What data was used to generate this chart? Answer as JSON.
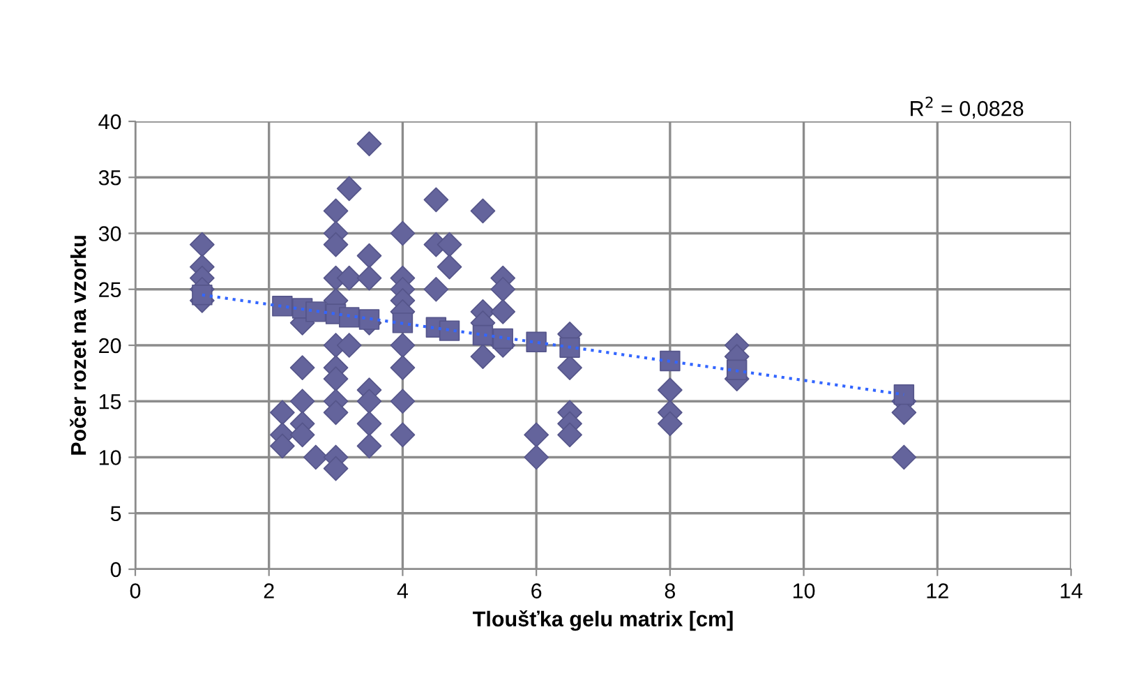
{
  "chart_data": {
    "type": "scatter",
    "xlabel": "Tloušťka gelu matrix [cm]",
    "ylabel": "Počer rozet na vzorku",
    "xlim": [
      0,
      14
    ],
    "xticks": [
      0,
      2,
      4,
      6,
      8,
      10,
      12,
      14
    ],
    "ylim": [
      0,
      40
    ],
    "yticks": [
      0,
      5,
      10,
      15,
      20,
      25,
      30,
      35,
      40
    ],
    "grid": true,
    "annotations": [
      "R$^{2}$ = 0,0828"
    ],
    "series": [
      {
        "color": "#64649c",
        "marker": "diamond",
        "x": [
          1,
          1,
          1,
          1,
          1,
          2.2,
          2.2,
          2.2,
          2.5,
          2.5,
          2.5,
          2.5,
          2.5,
          2.7,
          3,
          3,
          3,
          3,
          3,
          3,
          3,
          3,
          3,
          3,
          3,
          3,
          3.2,
          3.2,
          3.2,
          3.5,
          3.5,
          3.5,
          3.5,
          3.5,
          3.5,
          3.5,
          3.5,
          4,
          4,
          4,
          4,
          4,
          4,
          4,
          4,
          4,
          4.5,
          4.5,
          4.5,
          4.7,
          4.7,
          5.2,
          5.2,
          5.2,
          5.2,
          5.5,
          5.5,
          5.5,
          5.5,
          6,
          6,
          6.5,
          6.5,
          6.5,
          6.5,
          6.5,
          8,
          8,
          8,
          9,
          9,
          9,
          11.5,
          11.5,
          11.5
        ],
        "values": [
          29,
          27,
          26,
          25,
          24,
          14,
          12,
          11,
          22,
          18,
          15,
          13,
          12,
          10,
          32,
          30,
          29,
          26,
          24,
          20,
          18,
          17,
          15,
          14,
          10,
          9,
          34,
          26,
          20,
          38,
          28,
          26,
          22,
          16,
          15,
          13,
          11,
          30,
          26,
          25,
          24,
          23,
          20,
          18,
          15,
          12,
          33,
          29,
          25,
          29,
          27,
          32,
          23,
          22,
          19,
          26,
          25,
          23,
          20,
          12,
          10,
          21,
          18,
          14,
          13,
          12,
          16,
          14,
          13,
          20,
          19,
          17,
          15,
          14,
          10
        ]
      },
      {
        "color": "#64649c",
        "marker": "square",
        "x": [
          1,
          2.2,
          2.5,
          2.7,
          3,
          3.2,
          3.5,
          4,
          4.5,
          4.7,
          5.2,
          5.5,
          6,
          6.5,
          8,
          9,
          11.5
        ],
        "values": [
          24.5,
          23.5,
          23.3,
          23,
          22.8,
          22.5,
          22.3,
          22,
          21.6,
          21.3,
          20.9,
          20.6,
          20.3,
          19.8,
          18.6,
          17.8,
          15.6
        ]
      },
      {
        "type": "line",
        "color": "#3366ff",
        "line_style": "dotted",
        "marker": "none",
        "x": [
          1,
          11.5
        ],
        "values": [
          24.5,
          15.6
        ]
      }
    ]
  }
}
